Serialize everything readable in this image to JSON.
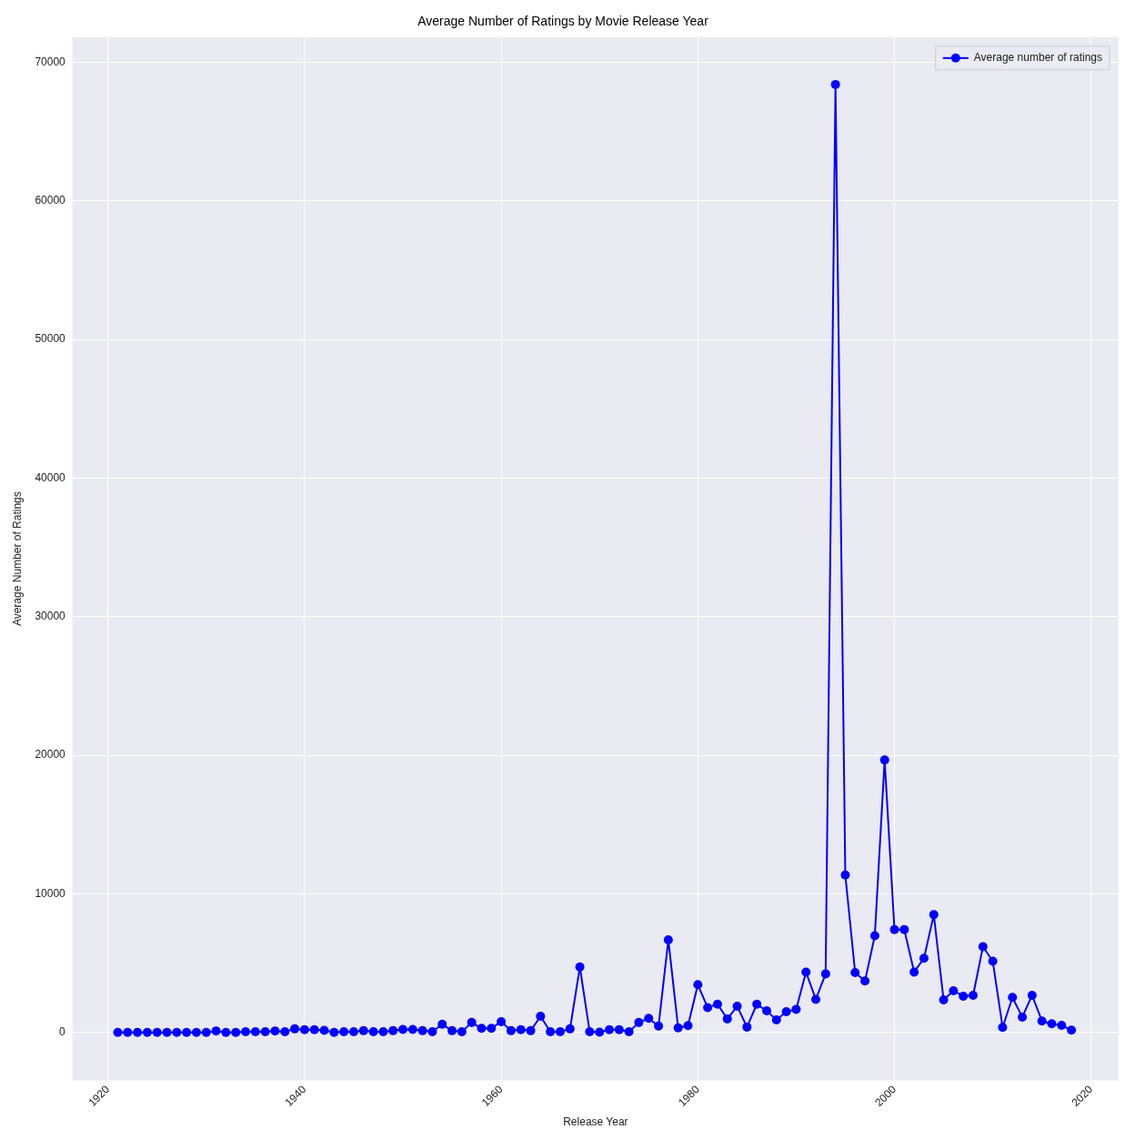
{
  "chart_data": {
    "type": "line",
    "title": "Average Number of Ratings by Movie Release Year",
    "xlabel": "Release Year",
    "ylabel": "Average Number of Ratings",
    "x": [
      1921,
      1922,
      1923,
      1924,
      1925,
      1926,
      1927,
      1928,
      1929,
      1930,
      1931,
      1932,
      1933,
      1934,
      1935,
      1936,
      1937,
      1938,
      1939,
      1940,
      1941,
      1942,
      1943,
      1944,
      1945,
      1946,
      1947,
      1948,
      1949,
      1950,
      1951,
      1952,
      1953,
      1954,
      1955,
      1956,
      1957,
      1958,
      1959,
      1960,
      1961,
      1962,
      1963,
      1964,
      1965,
      1966,
      1967,
      1968,
      1969,
      1970,
      1971,
      1972,
      1973,
      1974,
      1975,
      1976,
      1977,
      1978,
      1979,
      1980,
      1981,
      1982,
      1983,
      1984,
      1985,
      1986,
      1987,
      1988,
      1989,
      1990,
      1991,
      1992,
      1993,
      1994,
      1995,
      1996,
      1997,
      1998,
      1999,
      2000,
      2001,
      2002,
      2003,
      2004,
      2005,
      2006,
      2007,
      2008,
      2009,
      2010,
      2011,
      2012,
      2013,
      2014,
      2015,
      2016,
      2017,
      2018
    ],
    "series": [
      {
        "name": "Average number of ratings",
        "color": "#0000ff",
        "values": [
          10,
          10,
          10,
          10,
          10,
          10,
          10,
          10,
          10,
          10,
          110,
          10,
          10,
          60,
          60,
          60,
          110,
          60,
          260,
          200,
          200,
          150,
          10,
          60,
          60,
          130,
          60,
          60,
          130,
          220,
          220,
          130,
          60,
          600,
          130,
          60,
          720,
          300,
          300,
          780,
          130,
          200,
          130,
          1170,
          50,
          50,
          260,
          4730,
          50,
          20,
          200,
          200,
          50,
          720,
          1020,
          460,
          6680,
          330,
          500,
          3450,
          1800,
          2040,
          980,
          1890,
          390,
          2040,
          1560,
          910,
          1500,
          1670,
          4360,
          2390,
          4230,
          68400,
          11360,
          4320,
          3710,
          6980,
          19660,
          7430,
          7430,
          4360,
          5360,
          8500,
          2350,
          3010,
          2620,
          2680,
          6190,
          5140,
          370,
          2530,
          1110,
          2680,
          830,
          630,
          520,
          170
        ]
      }
    ],
    "xlim": [
      1916.4,
      2022.8
    ],
    "xticks": [
      1920,
      1940,
      1960,
      1980,
      2000,
      2020
    ],
    "ylim": [
      -3460,
      71820
    ],
    "yticks": [
      0,
      10000,
      20000,
      30000,
      40000,
      50000,
      60000,
      70000
    ],
    "grid": true,
    "legend": "top right",
    "marker": "circle",
    "line_style": "solid"
  }
}
